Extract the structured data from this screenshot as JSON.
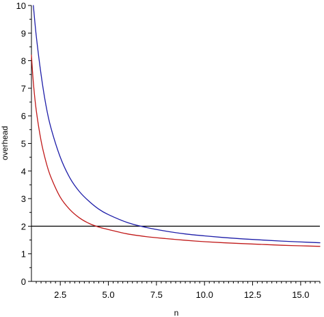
{
  "chart_data": {
    "type": "line",
    "xlabel": "n",
    "ylabel": "overhead",
    "xlim": [
      1,
      16
    ],
    "ylim": [
      0,
      10
    ],
    "grid": false,
    "legend": "none",
    "xticks": [
      2.5,
      5.0,
      7.5,
      10.0,
      12.5,
      15.0
    ],
    "xtick_labels": [
      "2.5",
      "5.0",
      "7.5",
      "10.0",
      "12.5",
      "15.0"
    ],
    "yticks": [
      0,
      1,
      2,
      3,
      4,
      5,
      6,
      7,
      8,
      9,
      10
    ],
    "ytick_labels": [
      "0",
      "1",
      "2",
      "3",
      "4",
      "5",
      "6",
      "7",
      "8",
      "9",
      "10"
    ],
    "series": [
      {
        "color": "#1c1ca8",
        "x": [
          1.1,
          1.25,
          1.5,
          1.75,
          2.0,
          2.5,
          3.0,
          3.5,
          4.0,
          4.5,
          5.0,
          6.0,
          7.0,
          8.0,
          9.0,
          10.0,
          11.0,
          12.0,
          13.0,
          14.0,
          15.0,
          16.0
        ],
        "y": [
          10.0,
          8.9,
          7.5,
          6.4,
          5.6,
          4.5,
          3.75,
          3.25,
          2.9,
          2.62,
          2.42,
          2.13,
          1.95,
          1.82,
          1.72,
          1.65,
          1.59,
          1.54,
          1.5,
          1.46,
          1.43,
          1.4
        ]
      },
      {
        "color": "#c01818",
        "x": [
          1.0,
          1.1,
          1.25,
          1.5,
          1.75,
          2.0,
          2.5,
          3.0,
          3.5,
          4.0,
          4.5,
          5.0,
          6.0,
          7.0,
          8.0,
          9.0,
          10.0,
          11.0,
          12.0,
          13.0,
          14.0,
          15.0,
          16.0
        ],
        "y": [
          8.2,
          7.2,
          6.2,
          5.1,
          4.35,
          3.8,
          3.05,
          2.6,
          2.3,
          2.1,
          1.97,
          1.88,
          1.72,
          1.62,
          1.55,
          1.49,
          1.44,
          1.4,
          1.37,
          1.34,
          1.31,
          1.29,
          1.27
        ]
      }
    ],
    "hlines": [
      {
        "y": 2,
        "color": "#000000"
      }
    ]
  }
}
